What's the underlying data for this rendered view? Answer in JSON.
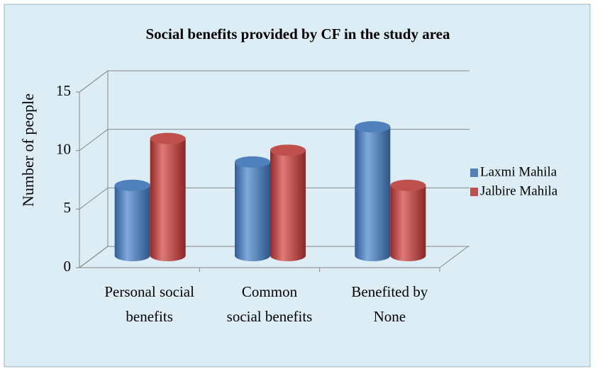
{
  "chart_data": {
    "type": "bar3d",
    "title": "Social benefits provided by CF in the study area",
    "y_label": "Number of people",
    "categories": [
      "Personal social benefits",
      "Common social benefits",
      "Benefited by None"
    ],
    "series": [
      {
        "name": "Laxmi Mahila",
        "color": "#4f81bd",
        "values": [
          6,
          8,
          11
        ]
      },
      {
        "name": "Jalbire Mahila",
        "color": "#c0504d",
        "values": [
          10,
          9,
          6
        ]
      }
    ],
    "ylim": [
      0,
      15
    ],
    "yticks": [
      0,
      5,
      10,
      15
    ],
    "grid": true,
    "legend": "right"
  }
}
